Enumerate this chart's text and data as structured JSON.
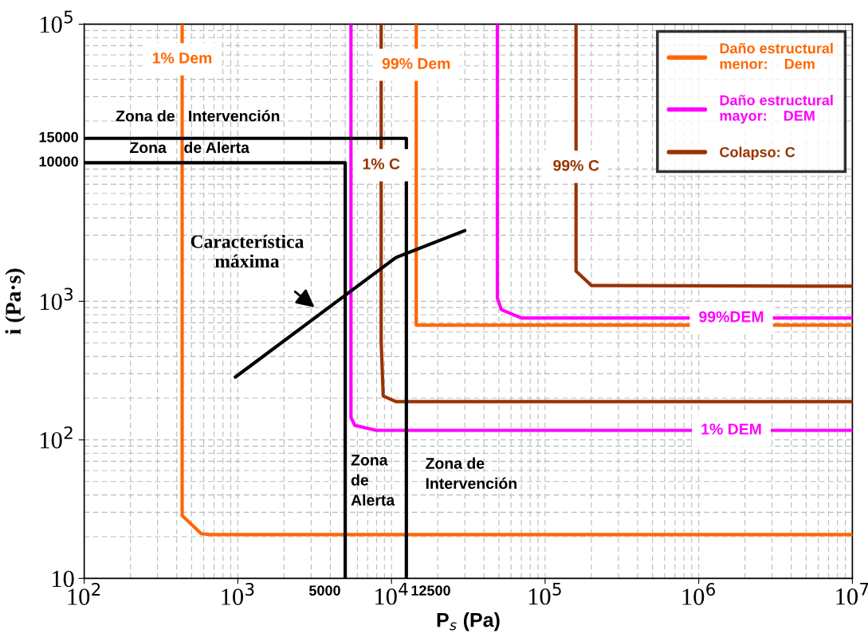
{
  "chart_data": {
    "type": "line",
    "xlabel": "P$_{s}$ (Pa)",
    "ylabel": "i (Pa·s)",
    "log": "xy",
    "xlim": [
      100,
      10000000
    ],
    "ylim": [
      10,
      100000
    ],
    "xticks": [
      {
        "value": 100,
        "label": "10$^{2}$"
      },
      {
        "value": 1000,
        "label": "10$^{3}$"
      },
      {
        "value": 10000,
        "label": "10$^{4}$"
      },
      {
        "value": 100000,
        "label": "10$^{5}$"
      },
      {
        "value": 1000000,
        "label": "10$^{6}$"
      },
      {
        "value": 10000000,
        "label": "10$^{7}$"
      }
    ],
    "yticks": [
      {
        "value": 10,
        "label": "10"
      },
      {
        "value": 100,
        "label": "10$^{2}$"
      },
      {
        "value": 1000,
        "label": "10$^{3}$"
      },
      {
        "value": 100000,
        "label": "10$^{5}$"
      }
    ],
    "grid": true,
    "legend": "top right",
    "series": [
      {
        "name": "Daño estructural\nmenor:    Dem",
        "color": "#ff6600",
        "x": [
          434,
          434,
          578,
          667,
          10000000
        ],
        "values": [
          100000,
          28.4,
          21.0,
          20.7,
          20.7
        ]
      },
      {
        "color": "#ff6600",
        "x": [
          14500,
          14500,
          10000000
        ],
        "values": [
          100000,
          673,
          673
        ]
      },
      {
        "name": "Daño estructural\nmayor:    DEM",
        "color": "#ff00ff",
        "x": [
          5450,
          5450,
          5780,
          7980,
          10000000
        ],
        "values": [
          100000,
          145,
          127,
          117,
          117
        ]
      },
      {
        "color": "#ff00ff",
        "x": [
          48900,
          48900,
          51900,
          70000,
          10000000
        ],
        "values": [
          100000,
          1055,
          870,
          757,
          757
        ]
      },
      {
        "name": "Colapso: C",
        "color": "#993300",
        "x": [
          8570,
          8570,
          8840,
          10700,
          10000000
        ],
        "values": [
          100000,
          509,
          207,
          189,
          189
        ]
      },
      {
        "color": "#993300",
        "x": [
          159000,
          159000,
          200000,
          10000000
        ],
        "values": [
          100000,
          1650,
          1300,
          1285
        ]
      },
      {
        "color": "#000000",
        "x": [
          100,
          5000,
          5000
        ],
        "values": [
          10000,
          10000,
          10
        ]
      },
      {
        "color": "#000000",
        "x": [
          100,
          12500,
          12500
        ],
        "values": [
          15000,
          15000,
          10
        ]
      },
      {
        "color": "#000000",
        "x": [
          964,
          10700,
          30000
        ],
        "values": [
          284,
          2070,
          3240
        ]
      }
    ],
    "annotations": [
      {
        "text": "1% Dem",
        "x": 434,
        "y": 55800
      },
      {
        "text": "99% Dem",
        "x": 14500,
        "y": 50900
      },
      {
        "text": "1% C",
        "x": 8570,
        "y": 9600
      },
      {
        "text": "99% C",
        "x": 159000,
        "y": 9350
      },
      {
        "text": "99%DEM",
        "x": 1630000,
        "y": 757
      },
      {
        "text": "1% DEM",
        "x": 1630000,
        "y": 117
      },
      {
        "text": "15000",
        "x": 100,
        "y": 15000
      },
      {
        "text": "10000",
        "x": 100,
        "y": 10000
      },
      {
        "text": "5000",
        "x": 5000,
        "y": 10
      },
      {
        "text": "12500",
        "x": 12500,
        "y": 10
      },
      "Característica\nmáxima",
      "Zona de   Intervención",
      "Zona    de Alerta",
      "Zona\nde\nAlerta",
      "Zona de\nIntervención"
    ]
  }
}
